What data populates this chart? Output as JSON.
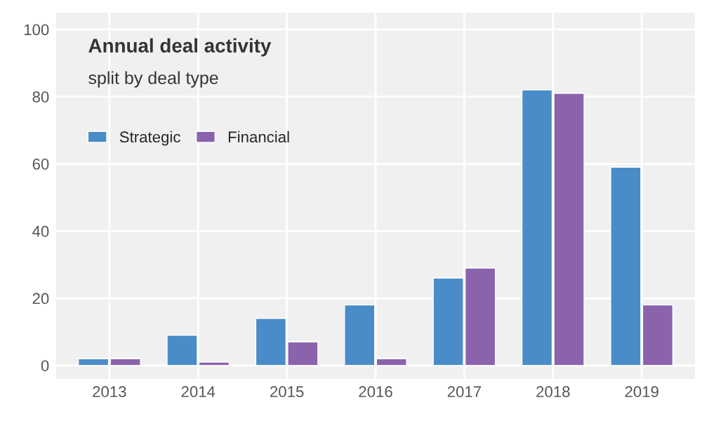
{
  "chart_data": {
    "type": "bar",
    "title": "Annual deal activity",
    "subtitle": "split by deal type",
    "categories": [
      "2013",
      "2014",
      "2015",
      "2016",
      "2017",
      "2018",
      "2019"
    ],
    "series": [
      {
        "name": "Strategic",
        "color": "#4a8cc8",
        "values": [
          2,
          9,
          14,
          18,
          26,
          82,
          59
        ]
      },
      {
        "name": "Financial",
        "color": "#8a63ac",
        "values": [
          2,
          1,
          7,
          2,
          29,
          81,
          18
        ]
      }
    ],
    "ylim": [
      -4,
      105
    ],
    "yticks": [
      0,
      20,
      40,
      60,
      80,
      100
    ],
    "grid": true,
    "legend": "top left"
  }
}
